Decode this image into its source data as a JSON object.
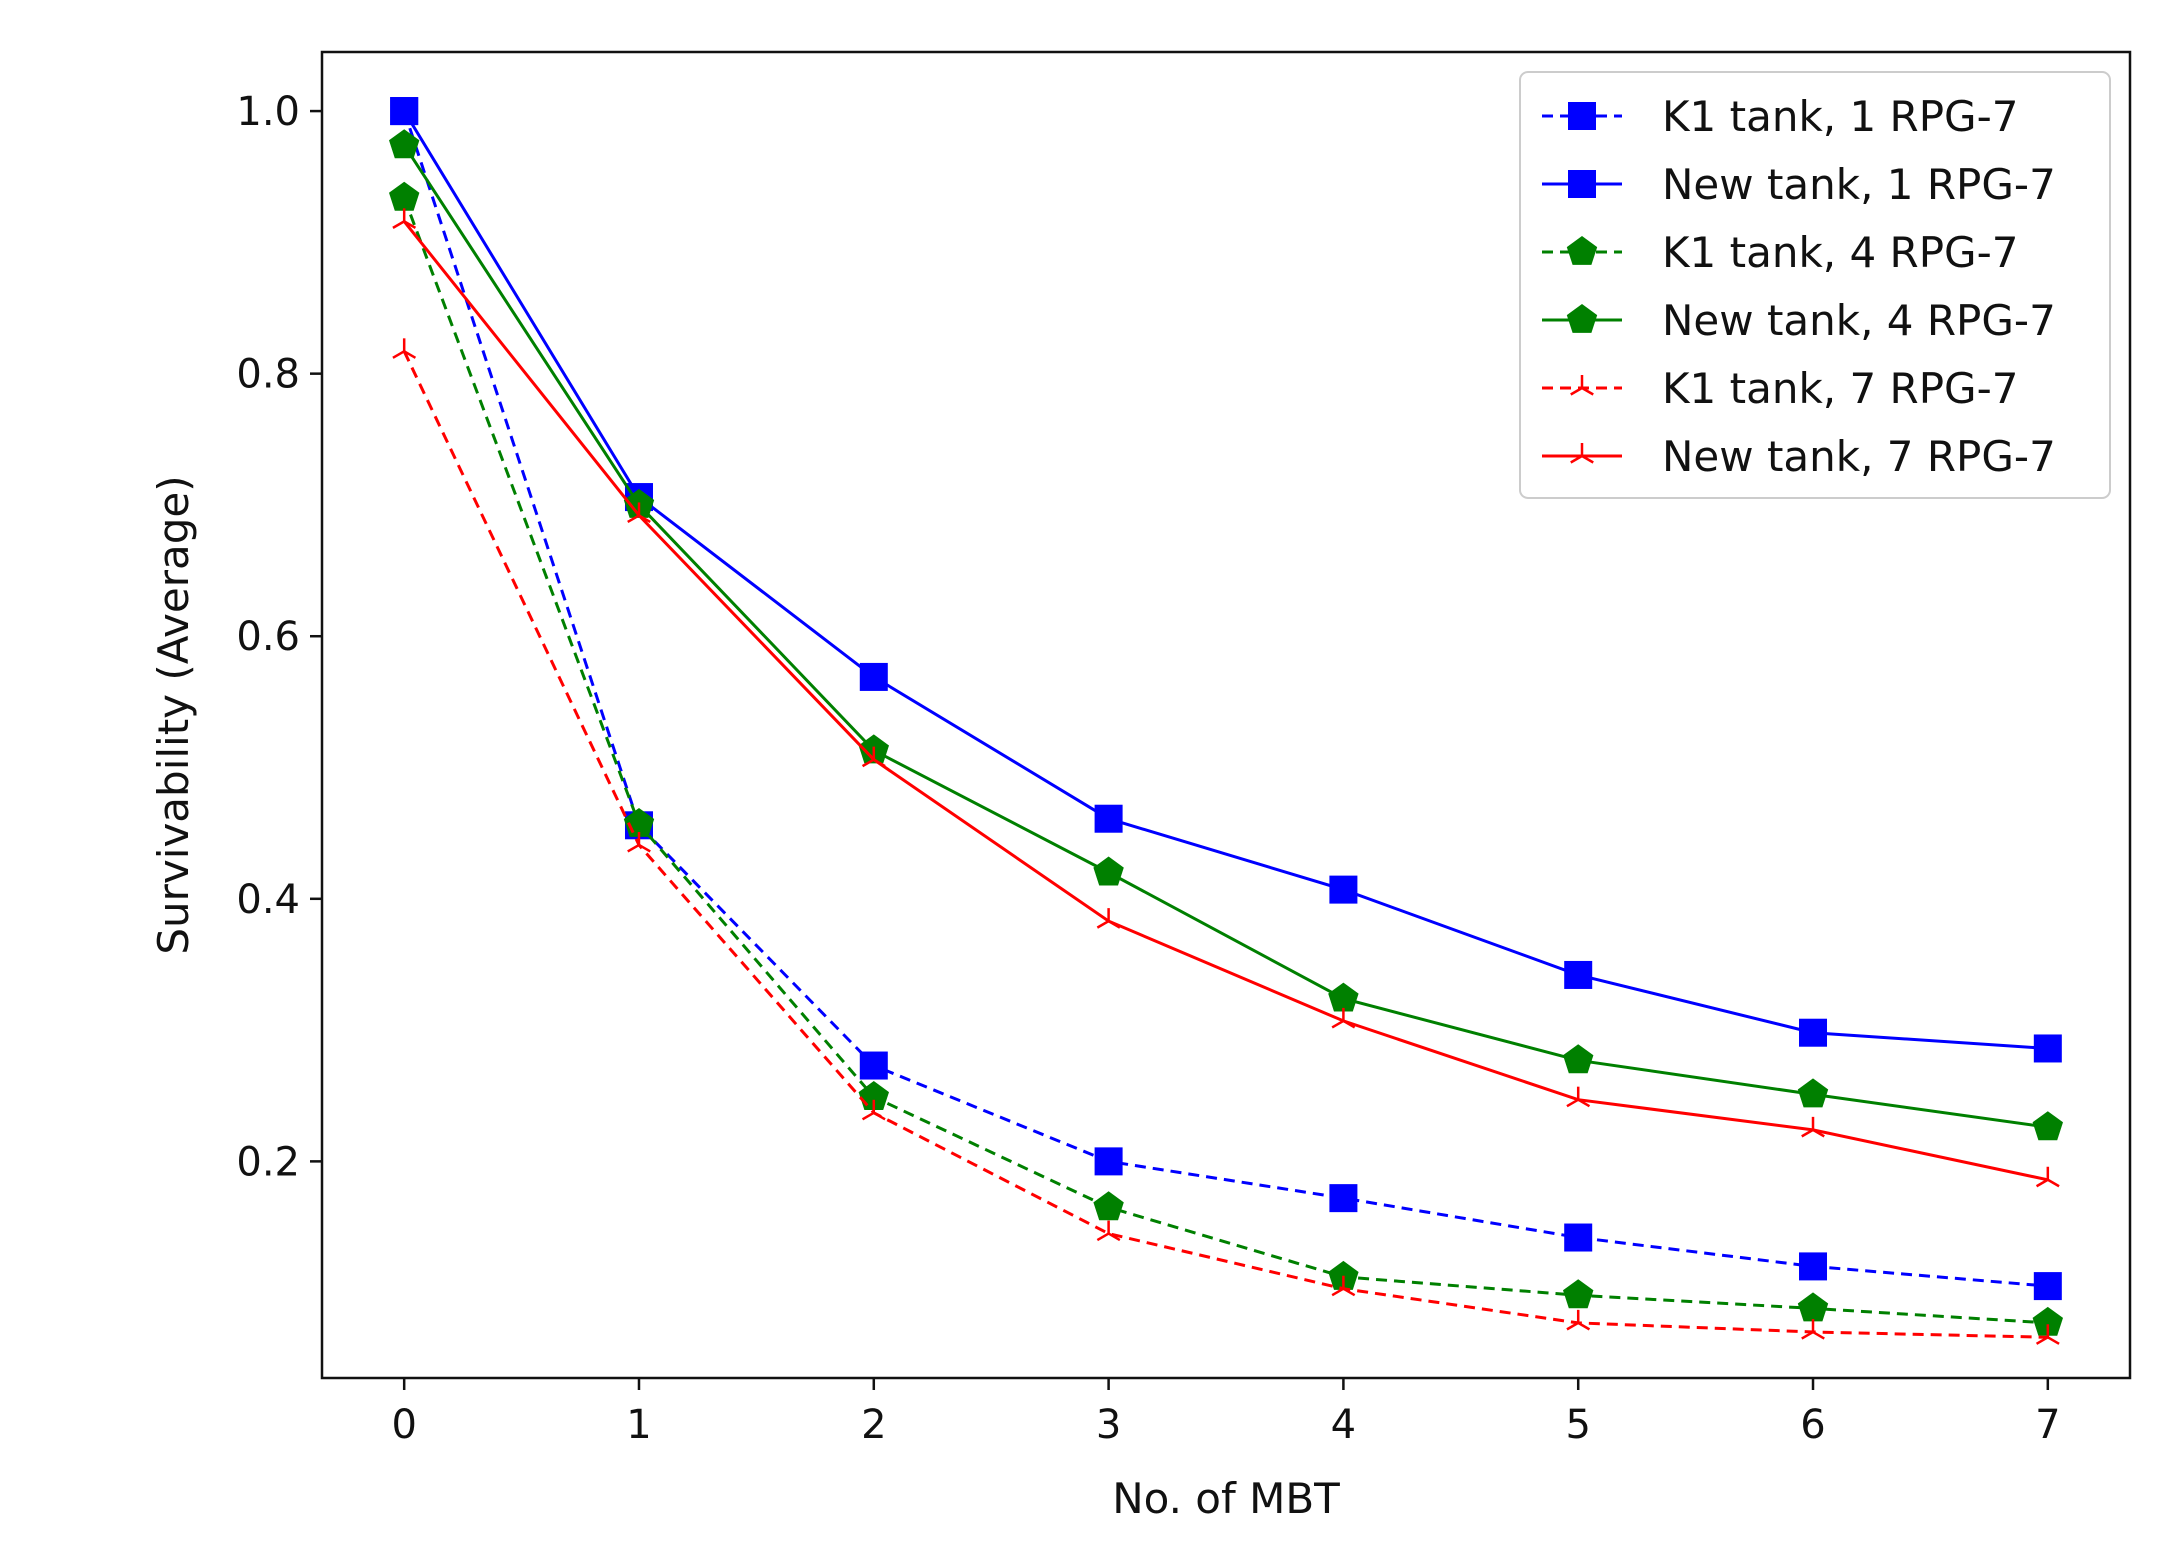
{
  "chart_data": {
    "type": "line",
    "title": "",
    "xlabel": "No. of MBT",
    "ylabel": "Survivability (Average)",
    "xlim": [
      -0.35,
      7.35
    ],
    "ylim": [
      0.035,
      1.045
    ],
    "x": [
      0,
      1,
      2,
      3,
      4,
      5,
      6,
      7
    ],
    "xticks": [
      "0",
      "1",
      "2",
      "3",
      "4",
      "5",
      "6",
      "7"
    ],
    "yticks": [
      0.2,
      0.4,
      0.6,
      0.8,
      1.0
    ],
    "ytick_labels": [
      "0.2",
      "0.4",
      "0.6",
      "0.8",
      "1.0"
    ],
    "grid": false,
    "legend_position": "top-right",
    "series": [
      {
        "name": "K1 tank, 1 RPG-7",
        "color": "#0000ff",
        "style": "dashed",
        "marker": "square",
        "values": [
          1.0,
          0.456,
          0.273,
          0.2,
          0.172,
          0.142,
          0.12,
          0.105
        ]
      },
      {
        "name": "New tank, 1 RPG-7",
        "color": "#0000ff",
        "style": "solid",
        "marker": "square",
        "values": [
          1.0,
          0.706,
          0.569,
          0.461,
          0.407,
          0.342,
          0.298,
          0.286
        ]
      },
      {
        "name": "K1 tank, 4 RPG-7",
        "color": "#008000",
        "style": "dashed",
        "marker": "pentagon",
        "values": [
          0.934,
          0.457,
          0.249,
          0.165,
          0.112,
          0.098,
          0.088,
          0.077
        ]
      },
      {
        "name": "New tank, 4 RPG-7",
        "color": "#008000",
        "style": "solid",
        "marker": "pentagon",
        "values": [
          0.974,
          0.7,
          0.513,
          0.42,
          0.324,
          0.277,
          0.251,
          0.226
        ]
      },
      {
        "name": "K1 tank, 7 RPG-7",
        "color": "#ff0000",
        "style": "dashed",
        "marker": "tri",
        "values": [
          0.817,
          0.441,
          0.237,
          0.145,
          0.103,
          0.077,
          0.07,
          0.066
        ]
      },
      {
        "name": "New tank, 7 RPG-7",
        "color": "#ff0000",
        "style": "solid",
        "marker": "tri",
        "values": [
          0.916,
          0.692,
          0.506,
          0.383,
          0.307,
          0.247,
          0.224,
          0.186
        ]
      }
    ]
  }
}
